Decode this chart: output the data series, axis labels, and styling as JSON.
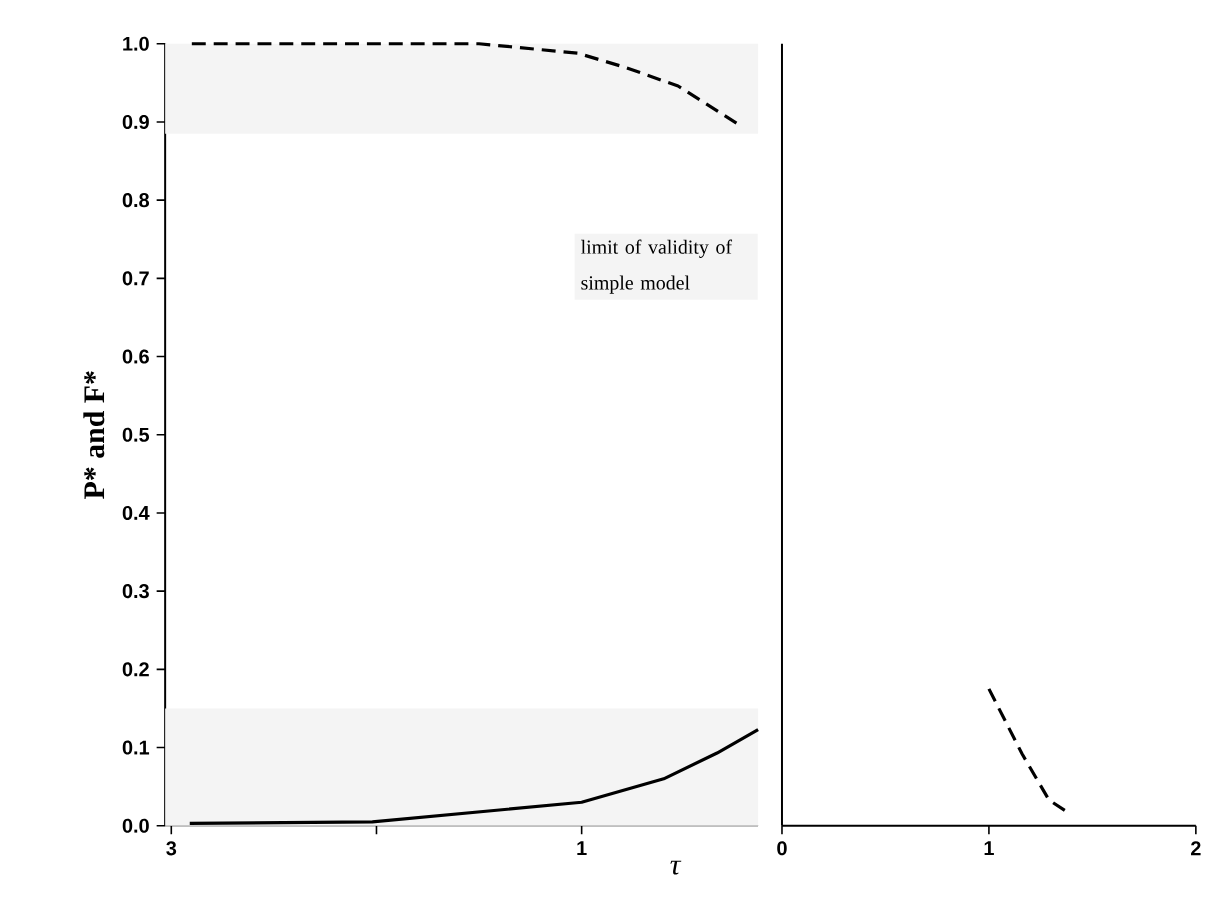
{
  "chart_data": [
    {
      "type": "line",
      "ylabel": "P* and F*",
      "xlabel": "τ",
      "xlim": [
        3.03,
        0.14
      ],
      "xticks": [
        3,
        {
          "value": 2,
          "label": null
        },
        1
      ],
      "ylim": [
        0,
        1.0
      ],
      "yticks": [
        {
          "value": 0,
          "label": "0.0"
        },
        {
          "value": 0.1,
          "label": "0.1"
        },
        {
          "value": 0.2,
          "label": "0.2"
        },
        {
          "value": 0.3,
          "label": "0.3"
        },
        {
          "value": 0.4,
          "label": "0.4"
        },
        {
          "value": 0.5,
          "label": "0.5"
        },
        {
          "value": 0.6,
          "label": "0.6"
        },
        {
          "value": 0.7,
          "label": "0.7"
        },
        {
          "value": 0.8,
          "label": "0.8"
        },
        {
          "value": 0.9,
          "label": "0.9"
        },
        {
          "value": 1,
          "label": "1.0"
        }
      ],
      "series": [
        {
          "color": "#000000",
          "line_style": "dashed",
          "x": [
            2.9,
            2.02,
            1.5,
            1.02,
            0.79,
            0.53,
            0.23
          ],
          "values": [
            1.0,
            1.0,
            1.0,
            0.988,
            0.97,
            0.946,
            0.896
          ]
        },
        {
          "color": "#000000",
          "line_style": "solid",
          "x": [
            2.91,
            2.02,
            1.0,
            0.6,
            0.34,
            0.14
          ],
          "values": [
            0.003,
            0.005,
            0.03,
            0.06,
            0.093,
            0.123
          ]
        }
      ],
      "bands": [
        {
          "axis": "y",
          "from": 0.885,
          "to": 1.0,
          "color": "#f4f4f4"
        },
        {
          "axis": "y",
          "from": 0,
          "to": 0.15,
          "color": "#f4f4f4"
        }
      ],
      "annotations": [
        "limit of validity of simple model"
      ]
    },
    {
      "type": "line",
      "xlim": [
        0,
        2
      ],
      "xticks": [
        0,
        1,
        2
      ],
      "ylim": [
        0,
        1.0
      ],
      "tick_labels": "x",
      "series": [
        {
          "color": "#000000",
          "line_style": "dashed",
          "x": [
            1.0,
            1.16,
            1.29,
            1.37
          ],
          "values": [
            0.175,
            0.092,
            0.033,
            0.019
          ]
        }
      ]
    }
  ]
}
